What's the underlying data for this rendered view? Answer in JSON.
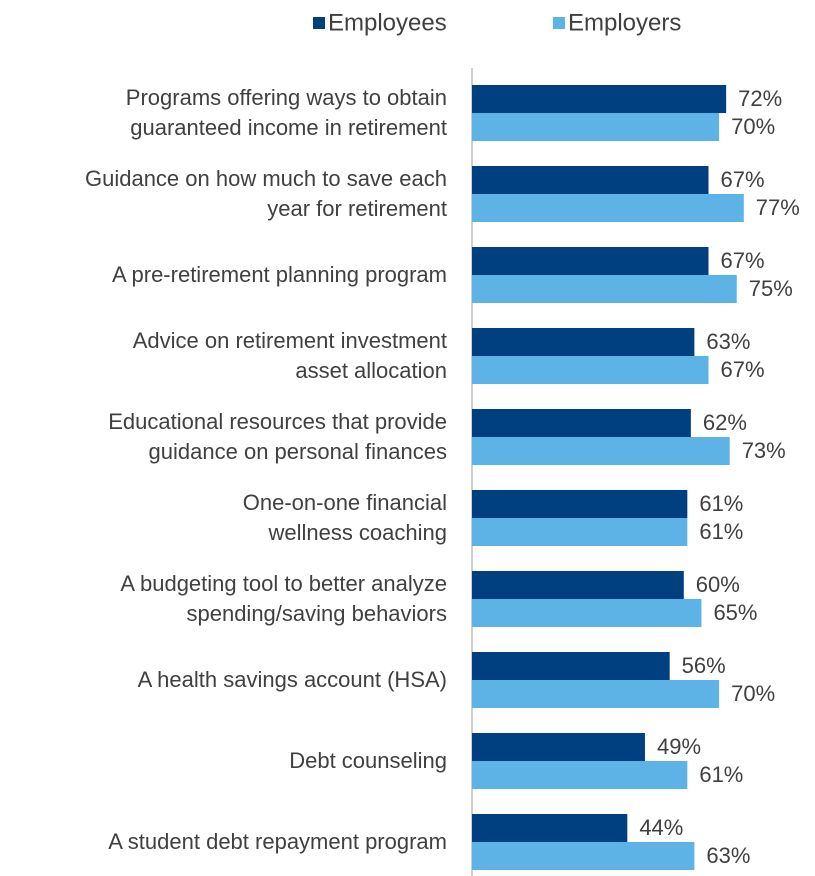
{
  "chart_data": {
    "type": "hbar",
    "categories": [
      "Programs offering ways to obtain\nguaranteed income in retirement",
      "Guidance on how much to save each\nyear for retirement",
      "A pre-retirement planning program",
      "Advice on retirement investment\nasset allocation",
      "Educational resources that provide\nguidance on personal finances",
      "One-on-one financial\nwellness coaching",
      "A budgeting tool to better analyze\nspending/saving behaviors",
      "A health savings account (HSA)",
      "Debt counseling",
      "A student debt repayment program"
    ],
    "series": [
      {
        "name": "Employees",
        "color": "#004080",
        "values": [
          72,
          67,
          67,
          63,
          62,
          61,
          60,
          56,
          49,
          44
        ],
        "value_labels": [
          "72%",
          "67%",
          "67%",
          "63%",
          "62%",
          "61%",
          "60%",
          "56%",
          "49%",
          "44%"
        ]
      },
      {
        "name": "Employers",
        "color": "#5db3e6",
        "values": [
          70,
          77,
          75,
          67,
          73,
          61,
          65,
          70,
          61,
          63
        ],
        "value_labels": [
          "70%",
          "77%",
          "75%",
          "67%",
          "73%",
          "61%",
          "65%",
          "70%",
          "61%",
          "63%"
        ]
      }
    ],
    "legend": "top"
  }
}
